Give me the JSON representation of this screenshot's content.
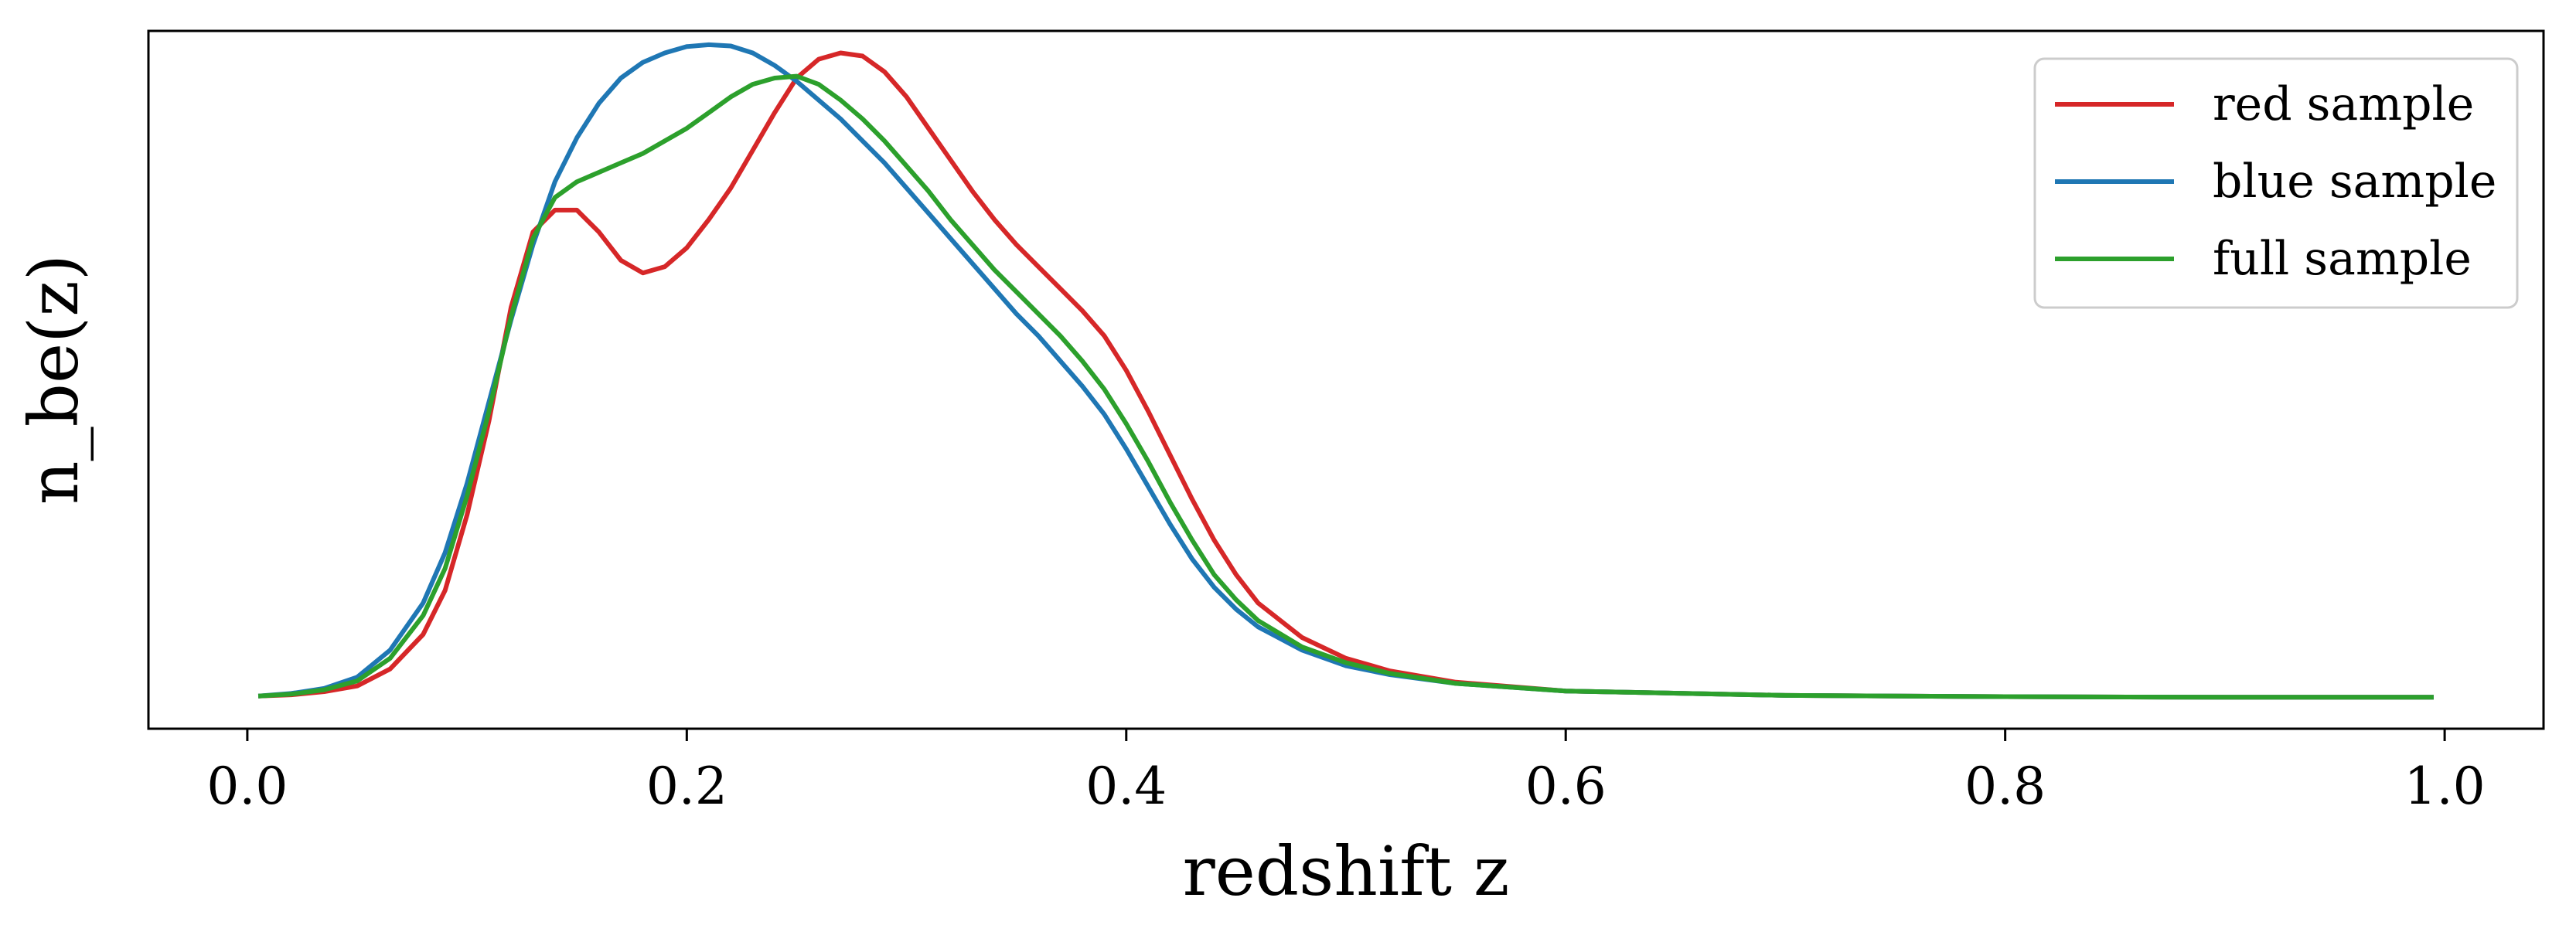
{
  "chart_data": {
    "type": "line",
    "title": "",
    "xlabel": "redshift z",
    "ylabel": "n_be(z)",
    "xlim": [
      -0.045,
      1.045
    ],
    "ylim": [
      -0.5,
      10.6
    ],
    "xticks": [
      0.0,
      0.2,
      0.4,
      0.6,
      0.8,
      1.0
    ],
    "xtick_labels": [
      "0.0",
      "0.2",
      "0.4",
      "0.6",
      "0.8",
      "1.0"
    ],
    "y_ticks_shown": false,
    "grid": false,
    "legend_position": "top-right",
    "series": [
      {
        "name": "red sample",
        "color": "#d62728",
        "x": [
          0.005,
          0.02,
          0.035,
          0.05,
          0.065,
          0.08,
          0.09,
          0.1,
          0.11,
          0.12,
          0.13,
          0.14,
          0.15,
          0.16,
          0.17,
          0.18,
          0.19,
          0.2,
          0.21,
          0.22,
          0.23,
          0.24,
          0.25,
          0.26,
          0.27,
          0.28,
          0.29,
          0.3,
          0.31,
          0.32,
          0.33,
          0.34,
          0.35,
          0.36,
          0.37,
          0.38,
          0.39,
          0.4,
          0.41,
          0.42,
          0.43,
          0.44,
          0.45,
          0.46,
          0.48,
          0.5,
          0.52,
          0.55,
          0.6,
          0.7,
          0.8,
          0.9,
          0.995
        ],
        "y": [
          0.02,
          0.04,
          0.09,
          0.18,
          0.45,
          1.0,
          1.7,
          2.9,
          4.4,
          6.2,
          7.4,
          7.75,
          7.75,
          7.4,
          6.95,
          6.75,
          6.85,
          7.15,
          7.6,
          8.1,
          8.7,
          9.3,
          9.85,
          10.15,
          10.25,
          10.2,
          9.95,
          9.55,
          9.05,
          8.55,
          8.05,
          7.6,
          7.2,
          6.85,
          6.5,
          6.15,
          5.75,
          5.2,
          4.55,
          3.85,
          3.15,
          2.5,
          1.95,
          1.5,
          0.95,
          0.62,
          0.42,
          0.24,
          0.1,
          0.03,
          0.01,
          0.0,
          0.0
        ]
      },
      {
        "name": "blue sample",
        "color": "#1f77b4",
        "x": [
          0.005,
          0.02,
          0.035,
          0.05,
          0.065,
          0.08,
          0.09,
          0.1,
          0.11,
          0.12,
          0.13,
          0.14,
          0.15,
          0.16,
          0.17,
          0.18,
          0.19,
          0.2,
          0.21,
          0.22,
          0.23,
          0.24,
          0.25,
          0.26,
          0.27,
          0.28,
          0.29,
          0.3,
          0.31,
          0.32,
          0.33,
          0.34,
          0.35,
          0.36,
          0.37,
          0.38,
          0.39,
          0.4,
          0.41,
          0.42,
          0.43,
          0.44,
          0.45,
          0.46,
          0.48,
          0.5,
          0.52,
          0.55,
          0.6,
          0.7,
          0.8,
          0.9,
          0.995
        ],
        "y": [
          0.02,
          0.06,
          0.14,
          0.32,
          0.75,
          1.5,
          2.3,
          3.4,
          4.7,
          6.0,
          7.2,
          8.2,
          8.9,
          9.45,
          9.85,
          10.1,
          10.25,
          10.35,
          10.38,
          10.36,
          10.25,
          10.05,
          9.8,
          9.5,
          9.2,
          8.85,
          8.5,
          8.1,
          7.7,
          7.3,
          6.9,
          6.5,
          6.1,
          5.75,
          5.35,
          4.95,
          4.5,
          3.95,
          3.35,
          2.75,
          2.2,
          1.75,
          1.4,
          1.12,
          0.75,
          0.5,
          0.36,
          0.22,
          0.1,
          0.03,
          0.01,
          0.0,
          0.0
        ]
      },
      {
        "name": "full sample",
        "color": "#2ca02c",
        "x": [
          0.005,
          0.02,
          0.035,
          0.05,
          0.065,
          0.08,
          0.09,
          0.1,
          0.11,
          0.12,
          0.13,
          0.14,
          0.15,
          0.16,
          0.17,
          0.18,
          0.19,
          0.2,
          0.21,
          0.22,
          0.23,
          0.24,
          0.25,
          0.26,
          0.27,
          0.28,
          0.29,
          0.3,
          0.31,
          0.32,
          0.33,
          0.34,
          0.35,
          0.36,
          0.37,
          0.38,
          0.39,
          0.4,
          0.41,
          0.42,
          0.43,
          0.44,
          0.45,
          0.46,
          0.48,
          0.5,
          0.52,
          0.55,
          0.6,
          0.7,
          0.8,
          0.9,
          0.995
        ],
        "y": [
          0.02,
          0.05,
          0.12,
          0.26,
          0.62,
          1.3,
          2.05,
          3.2,
          4.55,
          6.05,
          7.3,
          7.95,
          8.2,
          8.35,
          8.5,
          8.65,
          8.85,
          9.05,
          9.3,
          9.55,
          9.75,
          9.85,
          9.88,
          9.75,
          9.5,
          9.2,
          8.85,
          8.45,
          8.05,
          7.6,
          7.2,
          6.8,
          6.45,
          6.1,
          5.75,
          5.35,
          4.9,
          4.35,
          3.75,
          3.1,
          2.5,
          1.95,
          1.55,
          1.22,
          0.8,
          0.55,
          0.38,
          0.22,
          0.1,
          0.03,
          0.01,
          0.0,
          0.0
        ]
      }
    ]
  }
}
